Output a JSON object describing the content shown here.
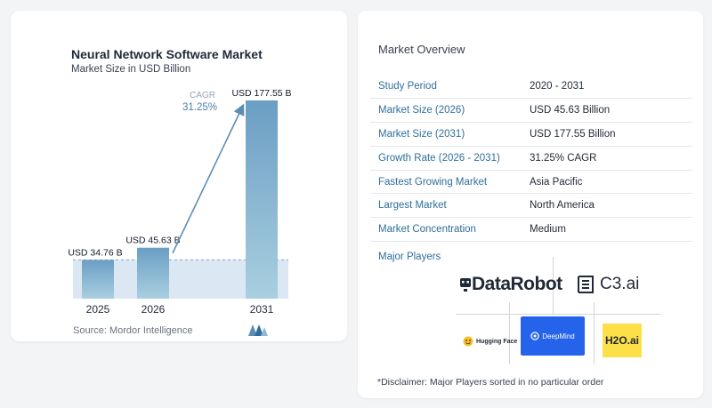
{
  "chart_data": {
    "type": "bar",
    "title": "Neural Network Software Market",
    "subtitle": "Market Size in USD Billion",
    "categories": [
      "2025",
      "2026",
      "2031"
    ],
    "values": [
      34.76,
      45.63,
      177.55
    ],
    "data_labels": [
      "USD 34.76 B",
      "USD 45.63 B",
      "USD 177.55 B"
    ],
    "xlabel": "",
    "ylabel": "",
    "ylim": [
      0,
      177.55
    ],
    "grid": false,
    "annotation": {
      "label": "CAGR",
      "value": "31.25%"
    },
    "colors": {
      "bar_top": "#6b9ec4",
      "bar_bottom": "#a9cfe0",
      "arrow": "#5b8db5",
      "shade": "#dbe8f3",
      "dashed": "#7fa7c6"
    }
  },
  "source": "Source:  Mordor Intelligence",
  "overview": {
    "title": "Market Overview",
    "rows": [
      {
        "key": "Study Period",
        "value": "2020 - 2031"
      },
      {
        "key": "Market Size (2026)",
        "value": "USD 45.63 Billion"
      },
      {
        "key": "Market Size (2031)",
        "value": "USD 177.55 Billion"
      },
      {
        "key": "Growth Rate (2026 - 2031)",
        "value": "31.25% CAGR"
      },
      {
        "key": "Fastest Growing Market",
        "value": "Asia Pacific"
      },
      {
        "key": "Largest Market",
        "value": "North America"
      },
      {
        "key": "Market Concentration",
        "value": "Medium"
      }
    ]
  },
  "players": {
    "label": "Major Players",
    "logos": [
      "DataRobot",
      "C3.ai",
      "Hugging Face",
      "DeepMind",
      "H2O.ai"
    ]
  },
  "disclaimer": "*Disclaimer: Major Players sorted in no particular order"
}
